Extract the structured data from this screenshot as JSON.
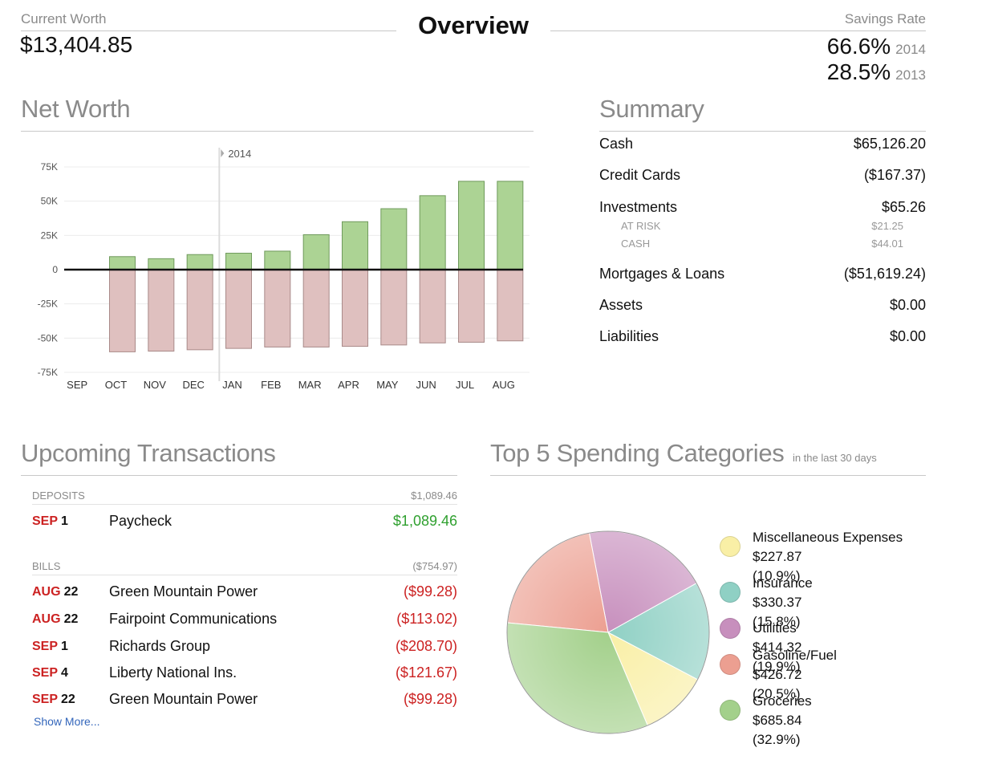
{
  "header": {
    "current_worth_label": "Current Worth",
    "current_worth_value": "$13,404.85",
    "title": "Overview",
    "savings_rate_label": "Savings Rate",
    "savings_rates": [
      {
        "percent": "66.6%",
        "year": "2014"
      },
      {
        "percent": "28.5%",
        "year": "2013"
      }
    ]
  },
  "net_worth": {
    "title": "Net Worth"
  },
  "chart_data": {
    "type": "bar",
    "title": "",
    "categories": [
      "SEP",
      "OCT",
      "NOV",
      "DEC",
      "JAN",
      "FEB",
      "MAR",
      "APR",
      "MAY",
      "JUN",
      "JUL",
      "AUG"
    ],
    "series": [
      {
        "values": [
          null,
          9500,
          8000,
          11000,
          12000,
          13500,
          25500,
          35000,
          44500,
          54000,
          64500,
          64500
        ],
        "color": "#acd394"
      },
      {
        "values": [
          null,
          -60000,
          -59500,
          -58500,
          -57500,
          -56500,
          -56500,
          -56000,
          -55000,
          -53500,
          -53000,
          -52000
        ],
        "color": "#dfc0bf"
      }
    ],
    "ylim": [
      -75000,
      75000
    ],
    "yticks": [
      "-75K",
      "-50K",
      "-25K",
      "0",
      "25K",
      "50K",
      "75K"
    ],
    "ytick_values": [
      -75000,
      -50000,
      -25000,
      0,
      25000,
      50000,
      75000
    ],
    "annotation": "2014",
    "annotation_after_category": "DEC",
    "grid": true
  },
  "summary": {
    "title": "Summary",
    "rows": [
      {
        "label": "Cash",
        "value": "$65,126.20"
      },
      {
        "label": "Credit Cards",
        "value": "($167.37)"
      },
      {
        "label": "Investments",
        "value": "$65.26"
      },
      {
        "label": "Mortgages & Loans",
        "value": "($51,619.24)"
      },
      {
        "label": "Assets",
        "value": "$0.00"
      },
      {
        "label": "Liabilities",
        "value": "$0.00"
      }
    ],
    "investment_subrows": [
      {
        "label": "AT RISK",
        "value": "$21.25"
      },
      {
        "label": "CASH",
        "value": "$44.01"
      }
    ]
  },
  "upcoming": {
    "title": "Upcoming Transactions",
    "deposits_label": "DEPOSITS",
    "deposits_total": "$1,089.46",
    "deposits": [
      {
        "month": "SEP",
        "day": "1",
        "description": "Paycheck",
        "amount": "$1,089.46"
      }
    ],
    "bills_label": "BILLS",
    "bills_total": "($754.97)",
    "bills": [
      {
        "month": "AUG",
        "day": "22",
        "description": "Green Mountain Power",
        "amount": "($99.28)"
      },
      {
        "month": "AUG",
        "day": "22",
        "description": "Fairpoint Communications",
        "amount": "($113.02)"
      },
      {
        "month": "SEP",
        "day": "1",
        "description": "Richards Group",
        "amount": "($208.70)"
      },
      {
        "month": "SEP",
        "day": "4",
        "description": "Liberty National Ins.",
        "amount": "($121.67)"
      },
      {
        "month": "SEP",
        "day": "22",
        "description": "Green Mountain Power",
        "amount": "($99.28)"
      }
    ],
    "show_more": "Show More..."
  },
  "spending": {
    "title": "Top 5 Spending Categories",
    "subtitle": "in the last 30 days",
    "categories": [
      {
        "name": "Miscellaneous Expenses",
        "amount": "$227.87",
        "pct_label": "(10.9%)",
        "percent": 10.9,
        "color": "#f9efa6"
      },
      {
        "name": "Insurance",
        "amount": "$330.37",
        "pct_label": "(15.8%)",
        "percent": 15.8,
        "color": "#8fd0c4"
      },
      {
        "name": "Utilities",
        "amount": "$414.32",
        "pct_label": "(19.9%)",
        "percent": 19.9,
        "color": "#c78fbd"
      },
      {
        "name": "Gasoline/Fuel",
        "amount": "$426.72",
        "pct_label": "(20.5%)",
        "percent": 20.5,
        "color": "#ec9f91"
      },
      {
        "name": "Groceries",
        "amount": "$685.84",
        "pct_label": "(32.9%)",
        "percent": 32.9,
        "color": "#a3d08b"
      }
    ]
  }
}
